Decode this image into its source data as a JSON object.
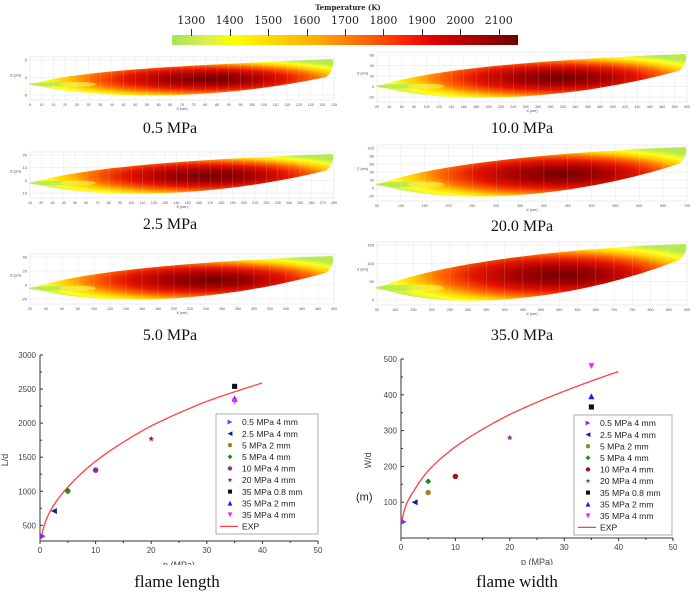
{
  "colorbar": {
    "title": "Temperature (K)",
    "ticks": [
      "1300",
      "1400",
      "1500",
      "1600",
      "1700",
      "1800",
      "1900",
      "2000",
      "2100"
    ],
    "range": [
      1250,
      2150
    ],
    "colors": [
      "#a6e35a",
      "#ffff00",
      "#ffaa00",
      "#ff2a00",
      "#6e0000"
    ]
  },
  "flame_panels": [
    {
      "label": "0.5 MPa",
      "xlabel": "X (cm)",
      "ylabel": "Z (cm)",
      "xticks": [
        "5",
        "10",
        "15",
        "20",
        "25",
        "30",
        "35",
        "40",
        "45",
        "50",
        "55",
        "60",
        "65",
        "70",
        "75",
        "80",
        "85",
        "90",
        "95",
        "100",
        "105",
        "110",
        "115",
        "120",
        "125",
        "130",
        "135"
      ],
      "yticks": [
        "5",
        "0",
        "-5"
      ]
    },
    {
      "label": "10.0 MPa",
      "xlabel": "X (cm)",
      "ylabel": "Z (cm)",
      "xticks": [
        "20",
        "40",
        "60",
        "80",
        "100",
        "120",
        "140",
        "160",
        "180",
        "200",
        "220",
        "240",
        "260",
        "280",
        "300",
        "320",
        "340",
        "360",
        "380",
        "400",
        "420",
        "440",
        "460",
        "480",
        "500",
        "520"
      ],
      "yticks": [
        "60",
        "40",
        "20",
        "0",
        "-20"
      ]
    },
    {
      "label": "2.5 MPa",
      "xlabel": "X (cm)",
      "ylabel": "Z (cm)",
      "xticks": [
        "10",
        "20",
        "30",
        "40",
        "50",
        "60",
        "70",
        "80",
        "90",
        "100",
        "110",
        "120",
        "130",
        "140",
        "150",
        "160",
        "170",
        "180",
        "190",
        "200",
        "210",
        "220",
        "230",
        "240",
        "250",
        "260",
        "270",
        "280"
      ],
      "yticks": [
        "20",
        "10",
        "0",
        "-10"
      ]
    },
    {
      "label": "20.0 MPa",
      "xlabel": "X (cm)",
      "ylabel": "Z (cm)",
      "xticks": [
        "50",
        "100",
        "150",
        "200",
        "250",
        "300",
        "350",
        "400",
        "450",
        "500",
        "550",
        "600",
        "650",
        "700"
      ],
      "yticks": [
        "100",
        "80",
        "60",
        "40",
        "20",
        "0",
        "-20"
      ]
    },
    {
      "label": "5.0 MPa",
      "xlabel": "X (cm)",
      "ylabel": "Z (cm)",
      "xticks": [
        "20",
        "40",
        "60",
        "80",
        "100",
        "120",
        "140",
        "160",
        "180",
        "200",
        "220",
        "240",
        "260",
        "280",
        "300",
        "320",
        "340",
        "360",
        "380",
        "400"
      ],
      "yticks": [
        "40",
        "20",
        "0",
        "-20"
      ]
    },
    {
      "label": "35.0 MPa",
      "xlabel": "X (cm)",
      "ylabel": "Z (cm)",
      "xticks": [
        "50",
        "100",
        "150",
        "200",
        "250",
        "300",
        "350",
        "400",
        "450",
        "500",
        "550",
        "600",
        "650",
        "700",
        "750",
        "800",
        "850",
        "900"
      ],
      "yticks": [
        "150",
        "100",
        "50",
        "0"
      ]
    }
  ],
  "chart_data": [
    {
      "type": "scatter",
      "title": "flame length",
      "xlabel": "p (MPa)",
      "ylabel": "L/d",
      "xlim": [
        0,
        50
      ],
      "ylim": [
        270,
        3000
      ],
      "xticks": [
        0,
        10,
        20,
        30,
        40,
        50
      ],
      "yticks": [
        500,
        1000,
        1500,
        2000,
        2500,
        3000
      ],
      "legend_position": "right",
      "series": [
        {
          "name": "0.5 MPa 4 mm",
          "marker": "triangle-right",
          "color": "#8a2be2",
          "points": [
            [
              0.5,
              340
            ]
          ]
        },
        {
          "name": "2.5 MPa 4 mm",
          "marker": "triangle-left",
          "color": "#1a1a8c",
          "points": [
            [
              2.5,
              710
            ]
          ]
        },
        {
          "name": "5 MPa 2 mm",
          "marker": "circle",
          "color": "#a08020",
          "points": [
            [
              5,
              1000
            ]
          ]
        },
        {
          "name": "5 MPa 4 mm",
          "marker": "diamond",
          "color": "#1a8c1a",
          "points": [
            [
              5,
              1010
            ]
          ]
        },
        {
          "name": "10 MPa 4 mm",
          "marker": "hexagon",
          "color": "#8b2a9b",
          "points": [
            [
              10,
              1310
            ]
          ]
        },
        {
          "name": "20 MPa 4 mm",
          "marker": "star",
          "color": "#a02020",
          "points": [
            [
              20,
              1770
            ]
          ]
        },
        {
          "name": "35 MPa 0.8 mm",
          "marker": "square",
          "color": "#111111",
          "points": [
            [
              35,
              2540
            ]
          ]
        },
        {
          "name": "35 MPa 2 mm",
          "marker": "triangle-up",
          "color": "#1a1aff",
          "points": [
            [
              35,
              2360
            ]
          ]
        },
        {
          "name": "35 MPa 4 mm",
          "marker": "triangle-down",
          "color": "#ff22ff",
          "points": [
            [
              35,
              2320
            ]
          ]
        },
        {
          "name": "EXP",
          "marker": "line",
          "color": "#ff4040",
          "function": "a*p^0.5",
          "x_range": [
            0.2,
            40
          ],
          "points": [
            [
              0.2,
              300
            ],
            [
              1,
              560
            ],
            [
              2.5,
              800
            ],
            [
              5,
              1060
            ],
            [
              10,
              1440
            ],
            [
              20,
              1960
            ],
            [
              30,
              2320
            ],
            [
              40,
              2590
            ]
          ]
        }
      ]
    },
    {
      "type": "scatter",
      "title": "flame width",
      "xlabel": "p (MPa)",
      "ylabel": "W/d",
      "yunit_note": "(m)",
      "xlim": [
        0,
        50
      ],
      "ylim": [
        0,
        500
      ],
      "xticks": [
        0,
        10,
        20,
        30,
        40,
        50
      ],
      "yticks": [
        100,
        200,
        300,
        400,
        500
      ],
      "legend_position": "right",
      "series": [
        {
          "name": "0.5 MPa 4 mm",
          "marker": "triangle-right",
          "color": "#8a2be2",
          "points": [
            [
              0.5,
              45
            ]
          ]
        },
        {
          "name": "2.5 MPa 4 mm",
          "marker": "triangle-left",
          "color": "#1a1a8c",
          "points": [
            [
              2.5,
              100
            ]
          ]
        },
        {
          "name": "5 MPa 2 mm",
          "marker": "circle",
          "color": "#a08020",
          "points": [
            [
              5,
              127
            ]
          ]
        },
        {
          "name": "5 MPa 4 mm",
          "marker": "diamond",
          "color": "#1a8c1a",
          "points": [
            [
              5,
              158
            ]
          ]
        },
        {
          "name": "10 MPa 4 mm",
          "marker": "hexagon",
          "color": "#8b1a1a",
          "points": [
            [
              10,
              172
            ]
          ]
        },
        {
          "name": "20 MPa 4 mm",
          "marker": "star",
          "color": "#8b2a9b",
          "points": [
            [
              20,
              280
            ]
          ]
        },
        {
          "name": "35 MPa 0.8 mm",
          "marker": "square",
          "color": "#111111",
          "points": [
            [
              35,
              366
            ]
          ]
        },
        {
          "name": "35 MPa 2 mm",
          "marker": "triangle-up",
          "color": "#1a1aff",
          "points": [
            [
              35,
              396
            ]
          ]
        },
        {
          "name": "35 MPa 4 mm",
          "marker": "triangle-down",
          "color": "#ff22ff",
          "points": [
            [
              35,
              480
            ]
          ]
        },
        {
          "name": "EXP",
          "marker": "line",
          "color": "#ff4040",
          "function": "a*p^0.5",
          "x_range": [
            0.2,
            40
          ],
          "points": [
            [
              0.2,
              50
            ],
            [
              1,
              95
            ],
            [
              2.5,
              135
            ],
            [
              5,
              188
            ],
            [
              10,
              255
            ],
            [
              20,
              345
            ],
            [
              30,
              410
            ],
            [
              40,
              465
            ]
          ]
        }
      ]
    }
  ]
}
